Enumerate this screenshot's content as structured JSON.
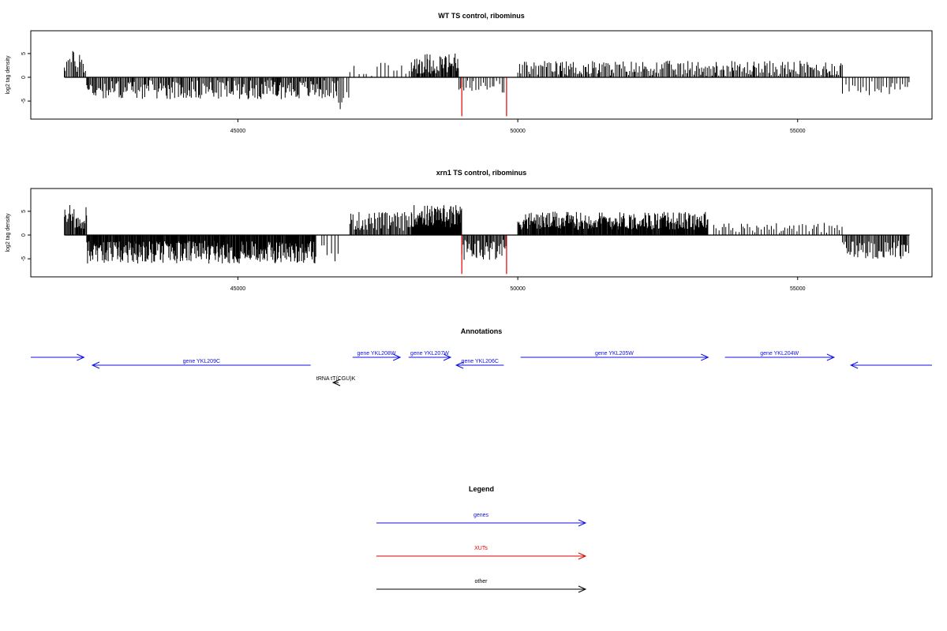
{
  "chart_data": [
    {
      "type": "bar",
      "title": "WT TS control, ribominus",
      "ylabel": "log2 tag density",
      "xlim": [
        41300,
        57400
      ],
      "ylim": [
        -8.8,
        9.8
      ],
      "x_ticks": [
        45000,
        50000,
        55000
      ],
      "y_ticks": [
        -5,
        0,
        5
      ],
      "grid": false,
      "segments": [
        {
          "start": 41900,
          "end": 42300,
          "mean": 3.2,
          "amp": 2.5,
          "spacing": 22
        },
        {
          "start": 42300,
          "end": 46800,
          "mean": -2.6,
          "amp": 2.0,
          "spacing": 20
        },
        {
          "start": 46800,
          "end": 47000,
          "mean": -4.5,
          "amp": 2.6,
          "spacing": 45
        },
        {
          "start": 47000,
          "end": 48100,
          "mean": 1.6,
          "amp": 1.7,
          "spacing": 75
        },
        {
          "start": 48100,
          "end": 48950,
          "mean": 2.9,
          "amp": 2.2,
          "spacing": 15
        },
        {
          "start": 48950,
          "end": 49800,
          "mean": -2.2,
          "amp": 1.8,
          "spacing": 40
        },
        {
          "start": 50000,
          "end": 55800,
          "mean": 1.9,
          "amp": 1.6,
          "spacing": 24
        },
        {
          "start": 55800,
          "end": 57000,
          "mean": -2.3,
          "amp": 1.5,
          "spacing": 45
        }
      ],
      "highlights": [
        {
          "x": 49000,
          "value": -8.2,
          "color": "#e00000"
        },
        {
          "x": 49800,
          "value": -8.2,
          "color": "#e00000"
        }
      ]
    },
    {
      "type": "bar",
      "title": "xrn1 TS control, ribominus",
      "ylabel": "log2 tag density",
      "xlim": [
        41300,
        57400
      ],
      "ylim": [
        -8.8,
        9.8
      ],
      "x_ticks": [
        45000,
        50000,
        55000
      ],
      "y_ticks": [
        -5,
        0,
        5
      ],
      "grid": false,
      "segments": [
        {
          "start": 41900,
          "end": 42300,
          "mean": 3.8,
          "amp": 2.7,
          "spacing": 15
        },
        {
          "start": 42300,
          "end": 46400,
          "mean": -3.6,
          "amp": 2.4,
          "spacing": 12
        },
        {
          "start": 46500,
          "end": 46800,
          "mean": -3.8,
          "amp": 2.3,
          "spacing": 60
        },
        {
          "start": 47000,
          "end": 48100,
          "mean": 2.9,
          "amp": 2.0,
          "spacing": 18
        },
        {
          "start": 48100,
          "end": 49000,
          "mean": 4.0,
          "amp": 2.4,
          "spacing": 9
        },
        {
          "start": 49000,
          "end": 49800,
          "mean": -3.0,
          "amp": 2.2,
          "spacing": 18
        },
        {
          "start": 50000,
          "end": 53400,
          "mean": 3.0,
          "amp": 1.9,
          "spacing": 12
        },
        {
          "start": 53500,
          "end": 55800,
          "mean": 1.5,
          "amp": 1.1,
          "spacing": 45
        },
        {
          "start": 55800,
          "end": 57000,
          "mean": -3.0,
          "amp": 2.0,
          "spacing": 20
        }
      ],
      "highlights": [
        {
          "x": 49000,
          "value": -8.2,
          "color": "#e00000"
        },
        {
          "x": 49800,
          "value": -8.2,
          "color": "#e00000"
        }
      ]
    }
  ],
  "annotations": {
    "title": "Annotations",
    "xlim": [
      41300,
      57400
    ],
    "items": [
      {
        "label": "",
        "start": 41300,
        "end": 42250,
        "direction": "right",
        "color": "#1010e0",
        "row": 0
      },
      {
        "label": "gene YKL209C",
        "start": 42400,
        "end": 46300,
        "direction": "left",
        "color": "#1010e0",
        "row": 1
      },
      {
        "label": "gene YKL208W",
        "start": 47050,
        "end": 47900,
        "direction": "right",
        "color": "#1010e0",
        "row": 0
      },
      {
        "label": "gene YKL207W",
        "start": 48050,
        "end": 48800,
        "direction": "right",
        "color": "#1010e0",
        "row": 0
      },
      {
        "label": "gene YKL206C",
        "start": 48900,
        "end": 49750,
        "direction": "left",
        "color": "#1010e0",
        "row": 1
      },
      {
        "label": "gene YKL205W",
        "start": 50050,
        "end": 53400,
        "direction": "right",
        "color": "#1010e0",
        "row": 0
      },
      {
        "label": "gene YKL204W",
        "start": 53700,
        "end": 55650,
        "direction": "right",
        "color": "#1010e0",
        "row": 0
      },
      {
        "label": "",
        "start": 55950,
        "end": 57400,
        "direction": "left",
        "color": "#1010e0",
        "row": 1
      },
      {
        "label": "tRNA tT(CGU)K",
        "start": 46700,
        "end": 46800,
        "direction": "left",
        "color": "#000000",
        "row": 2
      }
    ]
  },
  "legend": {
    "title": "Legend",
    "items": [
      {
        "label": "genes",
        "color": "#1010e0"
      },
      {
        "label": "XUTs",
        "color": "#e00000"
      },
      {
        "label": "other",
        "color": "#000000"
      }
    ]
  }
}
